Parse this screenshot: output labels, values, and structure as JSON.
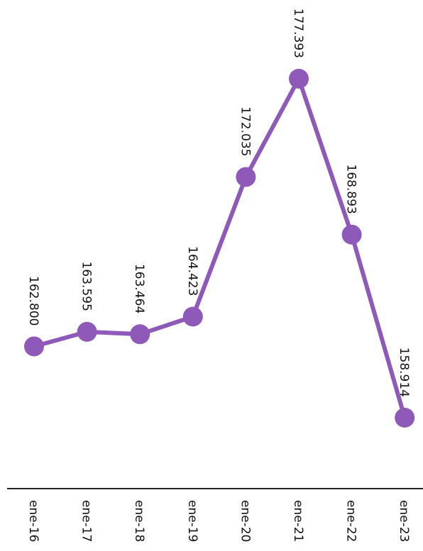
{
  "chart_data": {
    "type": "line",
    "categories": [
      "ene-16",
      "ene-17",
      "ene-18",
      "ene-19",
      "ene-20",
      "ene-21",
      "ene-22",
      "ene-23"
    ],
    "series": [
      {
        "values": [
          162800,
          163595,
          163464,
          164423,
          172035,
          177393,
          168893,
          158914
        ],
        "labels": [
          "162.800",
          "163.595",
          "163.464",
          "164.423",
          "172.035",
          "177.393",
          "168.893",
          "158.914"
        ]
      }
    ],
    "orientation": "rotated-90-clockwise",
    "color": "#8e59b8",
    "axis_color": "#222222",
    "grid": false,
    "legend": "none"
  }
}
